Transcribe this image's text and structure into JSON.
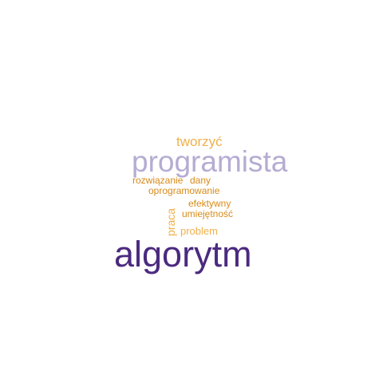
{
  "cloud": {
    "words": {
      "tworzyc": {
        "text": "tworzyć",
        "color": "#f0b04a"
      },
      "programista": {
        "text": "programista",
        "color": "#b5acd2"
      },
      "rozwiazanie": {
        "text": "rozwiązanie",
        "color": "#d88a18"
      },
      "dany": {
        "text": "dany",
        "color": "#d88a18"
      },
      "oprogramowanie": {
        "text": "oprogramowanie",
        "color": "#d88a18"
      },
      "efektywny": {
        "text": "efektywny",
        "color": "#d88a18"
      },
      "umiejetnosc": {
        "text": "umiejętność",
        "color": "#d88a18"
      },
      "praca": {
        "text": "praca",
        "color": "#f0b04a"
      },
      "problem": {
        "text": "problem",
        "color": "#f0b04a"
      },
      "algorytm": {
        "text": "algorytm",
        "color": "#4b2a7f"
      }
    }
  }
}
